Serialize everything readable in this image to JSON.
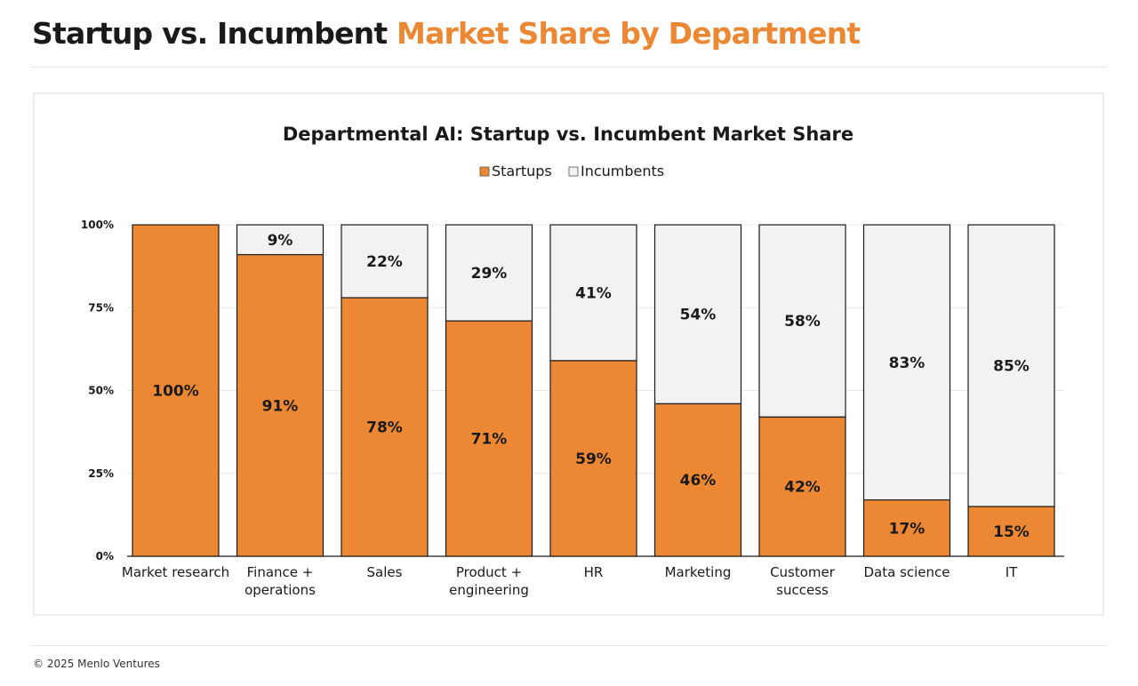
{
  "header": {
    "title_part1": "Startup vs. Incumbent",
    "title_part2": "Market Share by Department"
  },
  "footer": {
    "copyright": "© 2025 Menlo Ventures"
  },
  "colors": {
    "accent": "#ec8833",
    "startups": "#ec8833",
    "incumbents": "#f2f2f2",
    "outline": "#1a1a1a"
  },
  "chart_data": {
    "type": "bar",
    "stacked": true,
    "title": "Departmental AI: Startup vs. Incumbent Market Share",
    "categories": [
      [
        "Market research"
      ],
      [
        "Finance +",
        "operations"
      ],
      [
        "Sales"
      ],
      [
        "Product +",
        "engineering"
      ],
      [
        "HR"
      ],
      [
        "Marketing"
      ],
      [
        "Customer",
        "success"
      ],
      [
        "Data science"
      ],
      [
        "IT"
      ]
    ],
    "series": [
      {
        "name": "Startups",
        "values": [
          100,
          91,
          78,
          71,
          59,
          46,
          42,
          17,
          15
        ],
        "color": "#ec8833",
        "labels": [
          "100%",
          "91%",
          "78%",
          "71%",
          "59%",
          "46%",
          "42%",
          "17%",
          "15%"
        ]
      },
      {
        "name": "Incumbents",
        "values": [
          0,
          9,
          22,
          29,
          41,
          54,
          58,
          83,
          85
        ],
        "color": "#f2f2f2",
        "labels": [
          "",
          "9%",
          "22%",
          "29%",
          "41%",
          "54%",
          "58%",
          "83%",
          "85%"
        ]
      }
    ],
    "ylim": [
      0,
      100
    ],
    "yticks": [
      0,
      25,
      50,
      75,
      100
    ],
    "ytick_labels": [
      "0%",
      "25%",
      "50%",
      "75%",
      "100%"
    ],
    "xlabel": "",
    "ylabel": "",
    "legend_position": "top-center",
    "grid": true
  }
}
